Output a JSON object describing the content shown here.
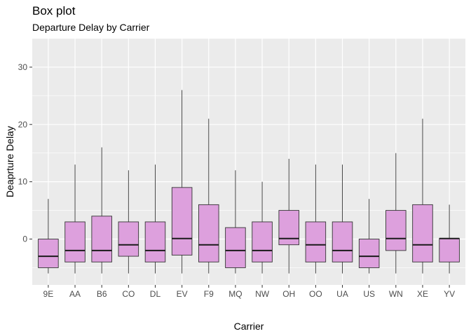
{
  "chart_data": {
    "type": "box",
    "title": "Box plot",
    "subtitle": "Departure Delay by Carrier",
    "xlabel": "Carrier",
    "ylabel": "Deaprture Delay",
    "ylim": [
      -8,
      35
    ],
    "yticks": [
      0,
      10,
      20,
      30
    ],
    "grid": true,
    "colors": {
      "panel": "#ebebeb",
      "grid": "#ffffff",
      "box_fill": "#dda0dd",
      "box_stroke": "#333333"
    },
    "categories": [
      "9E",
      "AA",
      "B6",
      "CO",
      "DL",
      "EV",
      "F9",
      "MQ",
      "NW",
      "OH",
      "OO",
      "UA",
      "US",
      "WN",
      "XE",
      "YV"
    ],
    "boxes": [
      {
        "carrier": "9E",
        "whisker_low": -6,
        "q1": -5,
        "median": -3,
        "q3": 0,
        "whisker_high": 7
      },
      {
        "carrier": "AA",
        "whisker_low": -6,
        "q1": -4,
        "median": -2,
        "q3": 3,
        "whisker_high": 13
      },
      {
        "carrier": "B6",
        "whisker_low": -6,
        "q1": -4,
        "median": -2,
        "q3": 4,
        "whisker_high": 16
      },
      {
        "carrier": "CO",
        "whisker_low": -6,
        "q1": -3,
        "median": -1,
        "q3": 3,
        "whisker_high": 12
      },
      {
        "carrier": "DL",
        "whisker_low": -6,
        "q1": -4,
        "median": -2,
        "q3": 3,
        "whisker_high": 13
      },
      {
        "carrier": "EV",
        "whisker_low": -6,
        "q1": -2.8,
        "median": 0.1,
        "q3": 9,
        "whisker_high": 26
      },
      {
        "carrier": "F9",
        "whisker_low": -6,
        "q1": -4,
        "median": -1,
        "q3": 6,
        "whisker_high": 21
      },
      {
        "carrier": "MQ",
        "whisker_low": -6,
        "q1": -5,
        "median": -2,
        "q3": 2,
        "whisker_high": 12
      },
      {
        "carrier": "NW",
        "whisker_low": -6,
        "q1": -4,
        "median": -2,
        "q3": 3,
        "whisker_high": 10
      },
      {
        "carrier": "OH",
        "whisker_low": -6,
        "q1": -1,
        "median": 0.1,
        "q3": 5,
        "whisker_high": 14
      },
      {
        "carrier": "OO",
        "whisker_low": -6,
        "q1": -4,
        "median": -1,
        "q3": 3,
        "whisker_high": 13
      },
      {
        "carrier": "UA",
        "whisker_low": -6,
        "q1": -4,
        "median": -2,
        "q3": 3,
        "whisker_high": 13
      },
      {
        "carrier": "US",
        "whisker_low": -6,
        "q1": -5,
        "median": -3,
        "q3": 0,
        "whisker_high": 7
      },
      {
        "carrier": "WN",
        "whisker_low": -6,
        "q1": -2,
        "median": 0.1,
        "q3": 5,
        "whisker_high": 15
      },
      {
        "carrier": "XE",
        "whisker_low": -6,
        "q1": -4,
        "median": -1,
        "q3": 6,
        "whisker_high": 21
      },
      {
        "carrier": "YV",
        "whisker_low": -6,
        "q1": -4,
        "median": 0.1,
        "q3": 0.1,
        "whisker_high": 6
      }
    ]
  }
}
